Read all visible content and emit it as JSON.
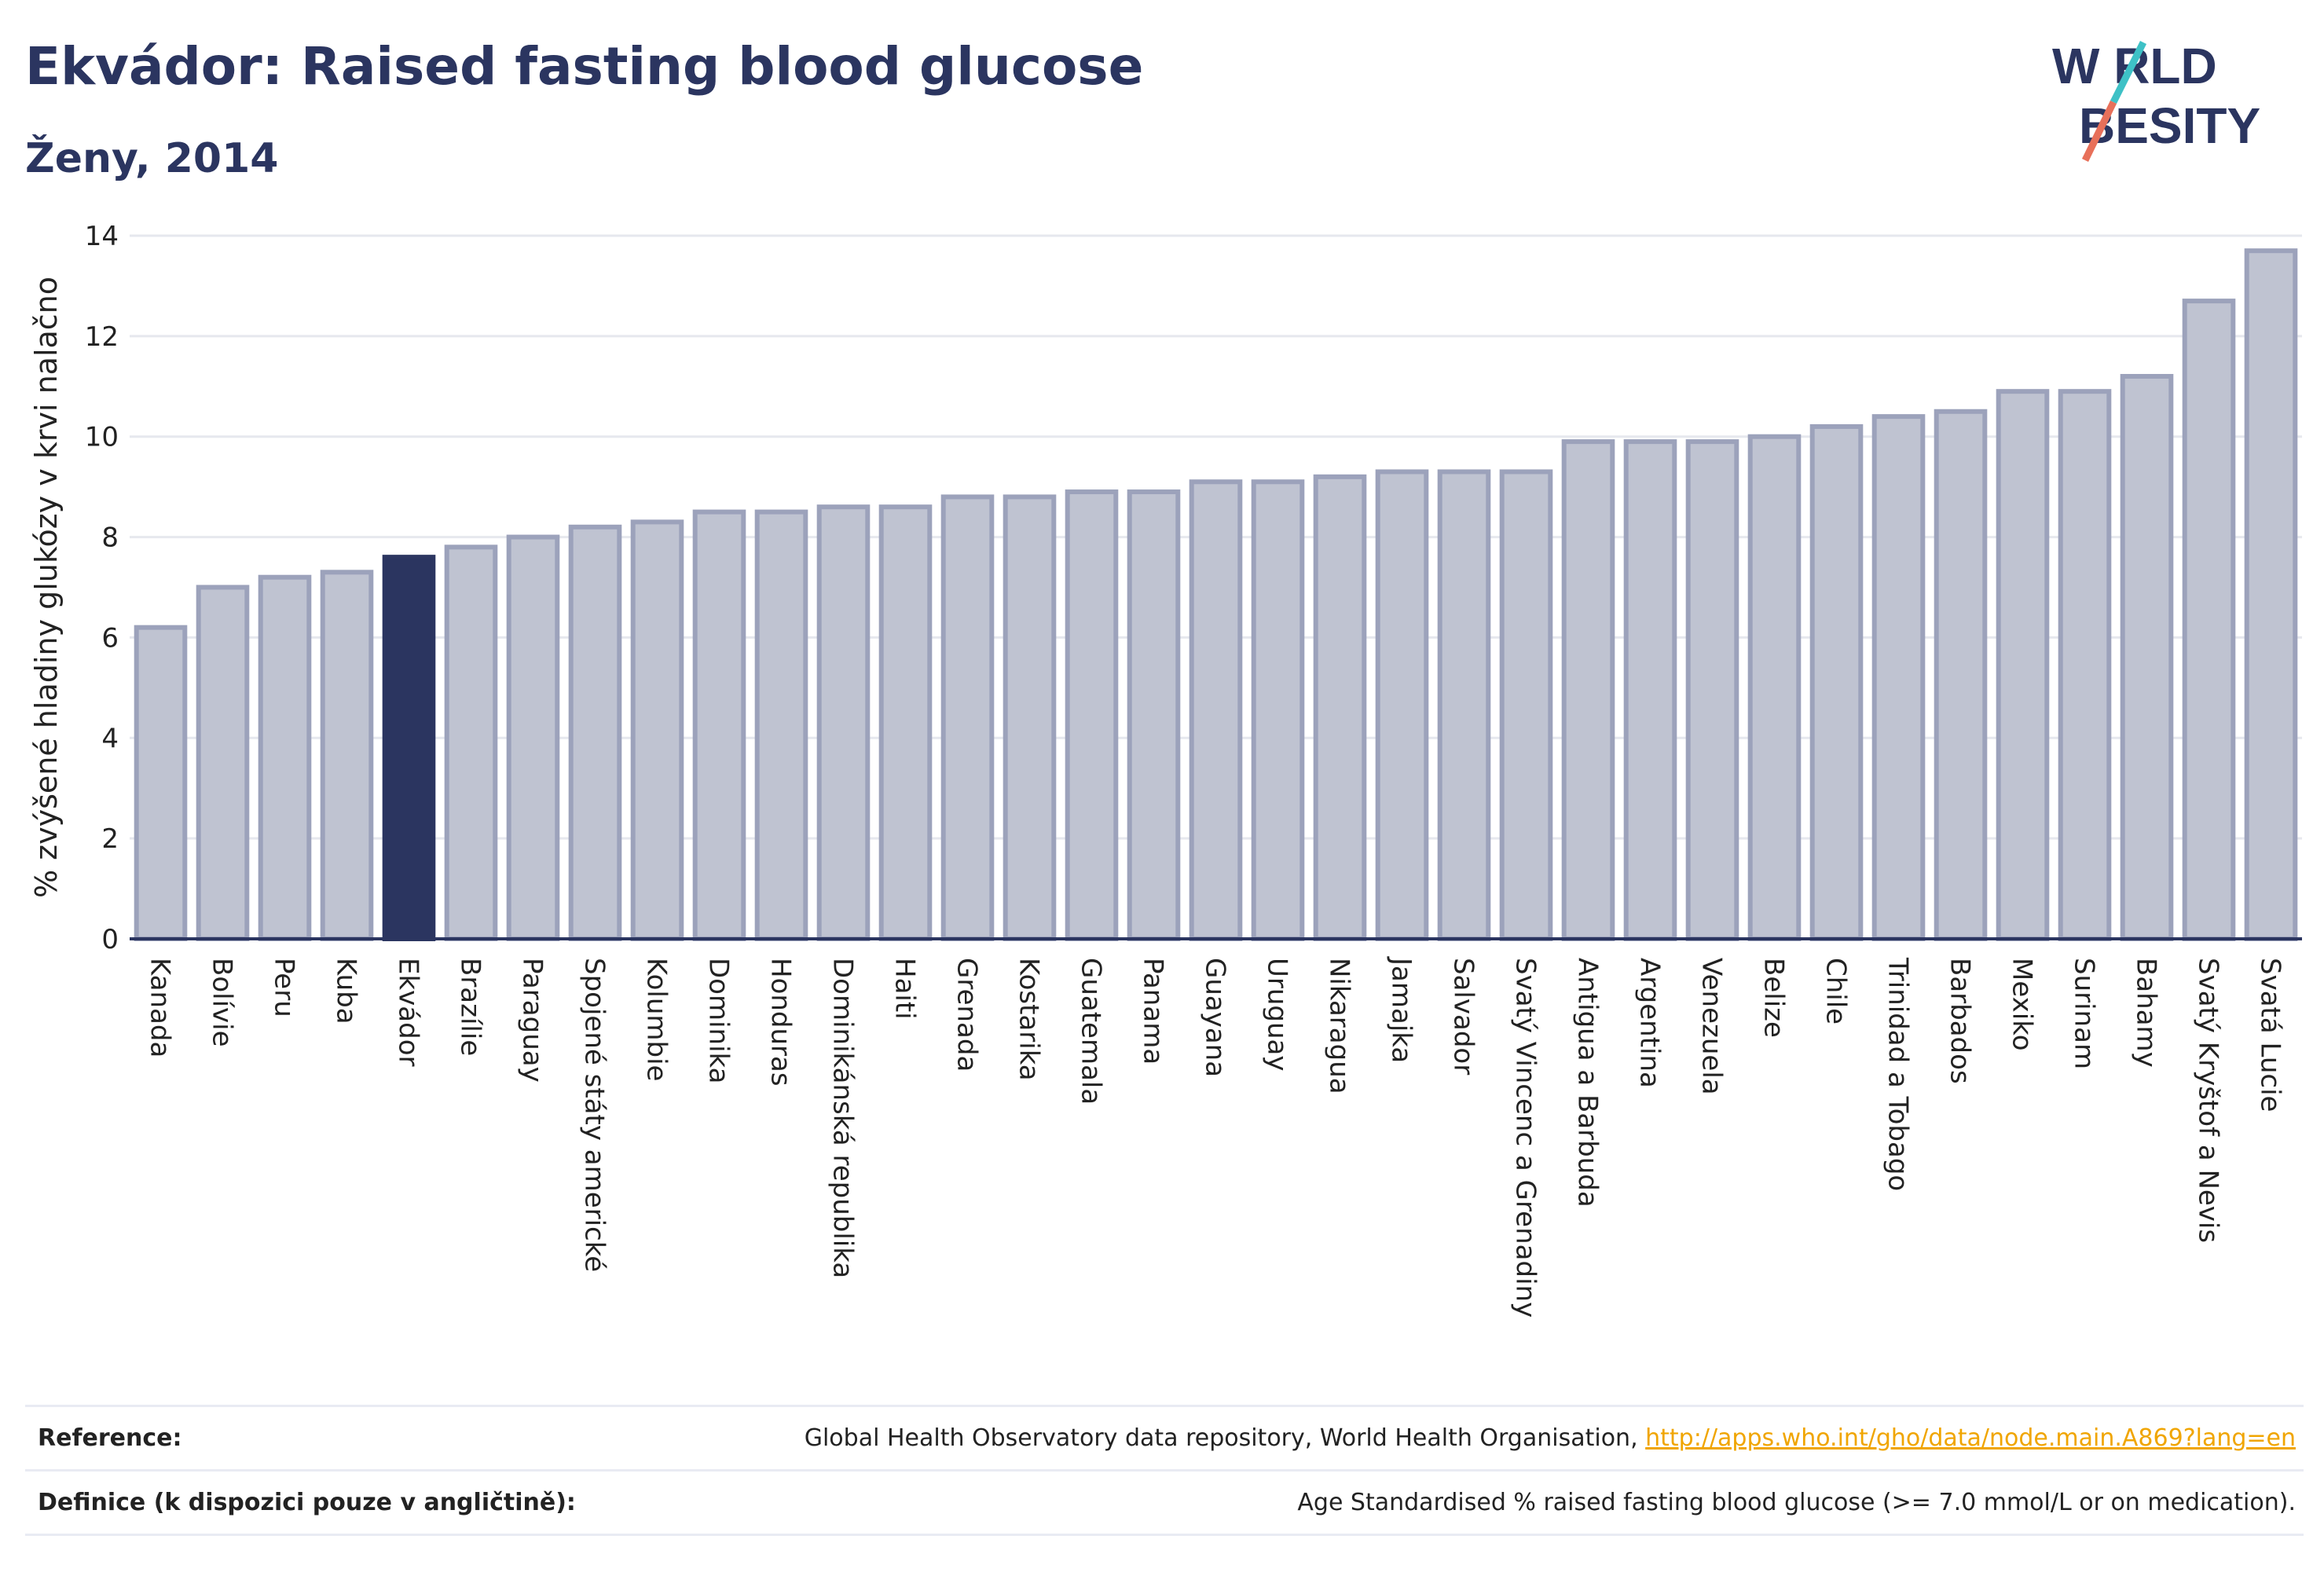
{
  "header": {
    "title": "Ekvádor: Raised fasting blood glucose",
    "subtitle": "Ženy, 2014"
  },
  "logo": {
    "line1": "W RLD",
    "line2": "BESITY",
    "slash_colors": [
      "#3ec1c6",
      "#e8705a"
    ]
  },
  "colors": {
    "bar": "#bfc3d1",
    "bar_border": "#9ca2bb",
    "highlight": "#2b3560",
    "grid": "#e6e8ee",
    "axis": "#2b3560"
  },
  "chart_data": {
    "type": "bar",
    "ylabel": "% zvýšené hladiny glukózy v krvi nalačno",
    "ylim": [
      0,
      14
    ],
    "yticks": [
      0,
      2,
      4,
      6,
      8,
      10,
      12,
      14
    ],
    "grid": true,
    "highlight": "Ekvádor",
    "categories": [
      "Kanada",
      "Bolívie",
      "Peru",
      "Kuba",
      "Ekvádor",
      "Brazílie",
      "Paraguay",
      "Spojené státy americké",
      "Kolumbie",
      "Dominika",
      "Honduras",
      "Dominikánská republika",
      "Haiti",
      "Grenada",
      "Kostarika",
      "Guatemala",
      "Panama",
      "Guayana",
      "Uruguay",
      "Nikaragua",
      "Jamajka",
      "Salvador",
      "Svatý Vincenc a Grenadiny",
      "Antigua a Barbuda",
      "Argentina",
      "Venezuela",
      "Belize",
      "Chile",
      "Trinidad a Tobago",
      "Barbados",
      "Mexiko",
      "Surinam",
      "Bahamy",
      "Svatý Kryštof a Nevis",
      "Svatá Lucie"
    ],
    "values": [
      6.2,
      7.0,
      7.2,
      7.3,
      7.6,
      7.8,
      8.0,
      8.2,
      8.3,
      8.5,
      8.5,
      8.6,
      8.6,
      8.8,
      8.8,
      8.9,
      8.9,
      9.1,
      9.1,
      9.2,
      9.3,
      9.3,
      9.3,
      9.9,
      9.9,
      9.9,
      10.0,
      10.2,
      10.4,
      10.5,
      10.9,
      10.9,
      11.2,
      12.7,
      13.7
    ]
  },
  "footer": {
    "reference_label": "Reference:",
    "reference_text": "Global Health Observatory data repository, World Health Organisation, ",
    "reference_link": "http://apps.who.int/gho/data/node.main.A869?lang=en",
    "definition_label": "Definice (k dispozici pouze v angličtině):",
    "definition_text": "Age Standardised % raised fasting blood glucose (>= 7.0 mmol/L or on medication)."
  }
}
